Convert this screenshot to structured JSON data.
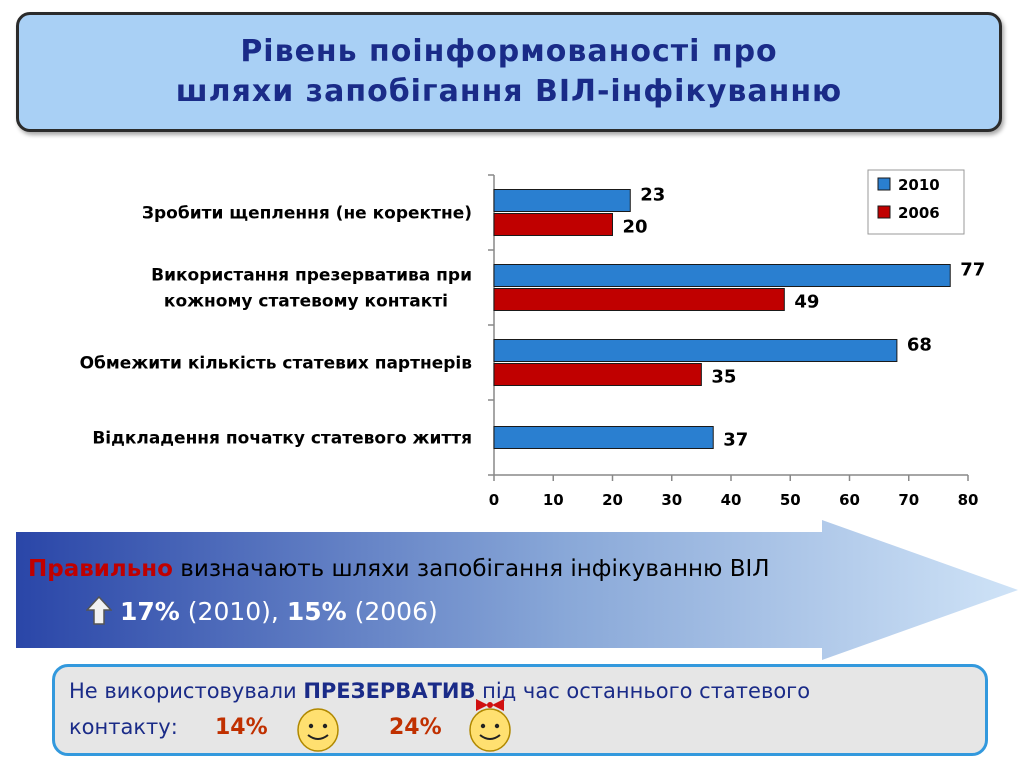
{
  "title": {
    "line1": "Рівень поінформованості про",
    "line2": "шляхи запобігання ВІЛ-інфікуванню"
  },
  "colors": {
    "series_2010": "#2a7fd0",
    "series_2006": "#c00000",
    "title_bg": "#a9d0f5",
    "accent_red": "#c00000"
  },
  "chart_data": {
    "type": "bar",
    "orientation": "horizontal",
    "categories": [
      [
        "Зробити щеплення (не коректне)"
      ],
      [
        "Використання презерватива при",
        "кожному статевому контакті"
      ],
      [
        "Обмежити кількість статевих партнерів"
      ],
      [
        "Відкладення початку статевого життя"
      ]
    ],
    "series": [
      {
        "name": "2010",
        "color": "#2a7fd0",
        "values": [
          23,
          77,
          68,
          37
        ]
      },
      {
        "name": "2006",
        "color": "#c00000",
        "values": [
          20,
          49,
          35,
          null
        ]
      }
    ],
    "xlim": [
      0,
      80
    ],
    "xticks": [
      "0",
      "10",
      "20",
      "30",
      "40",
      "50",
      "60",
      "70",
      "80"
    ],
    "legend_position": "top-right",
    "grid": false
  },
  "arrow": {
    "correct_word": "Правильно",
    "line1_rest": " визначають шляхи запобігання інфікуванню ВІЛ",
    "pct_2010": "17%",
    "year_2010": " (2010), ",
    "pct_2006": "15%",
    "year_2006": " (2006)",
    "icon": "up-arrow-icon"
  },
  "bottom": {
    "line1_a": "Не використовували ",
    "line1_bold": "ПРЕЗЕРВАТИВ",
    "line1_b": " під час останнього статевого",
    "line2": "контакту:",
    "pct_boys": "14%",
    "pct_girls": "24%",
    "icon_boys": "smiley-boy-icon",
    "icon_girls": "smiley-girl-icon"
  }
}
